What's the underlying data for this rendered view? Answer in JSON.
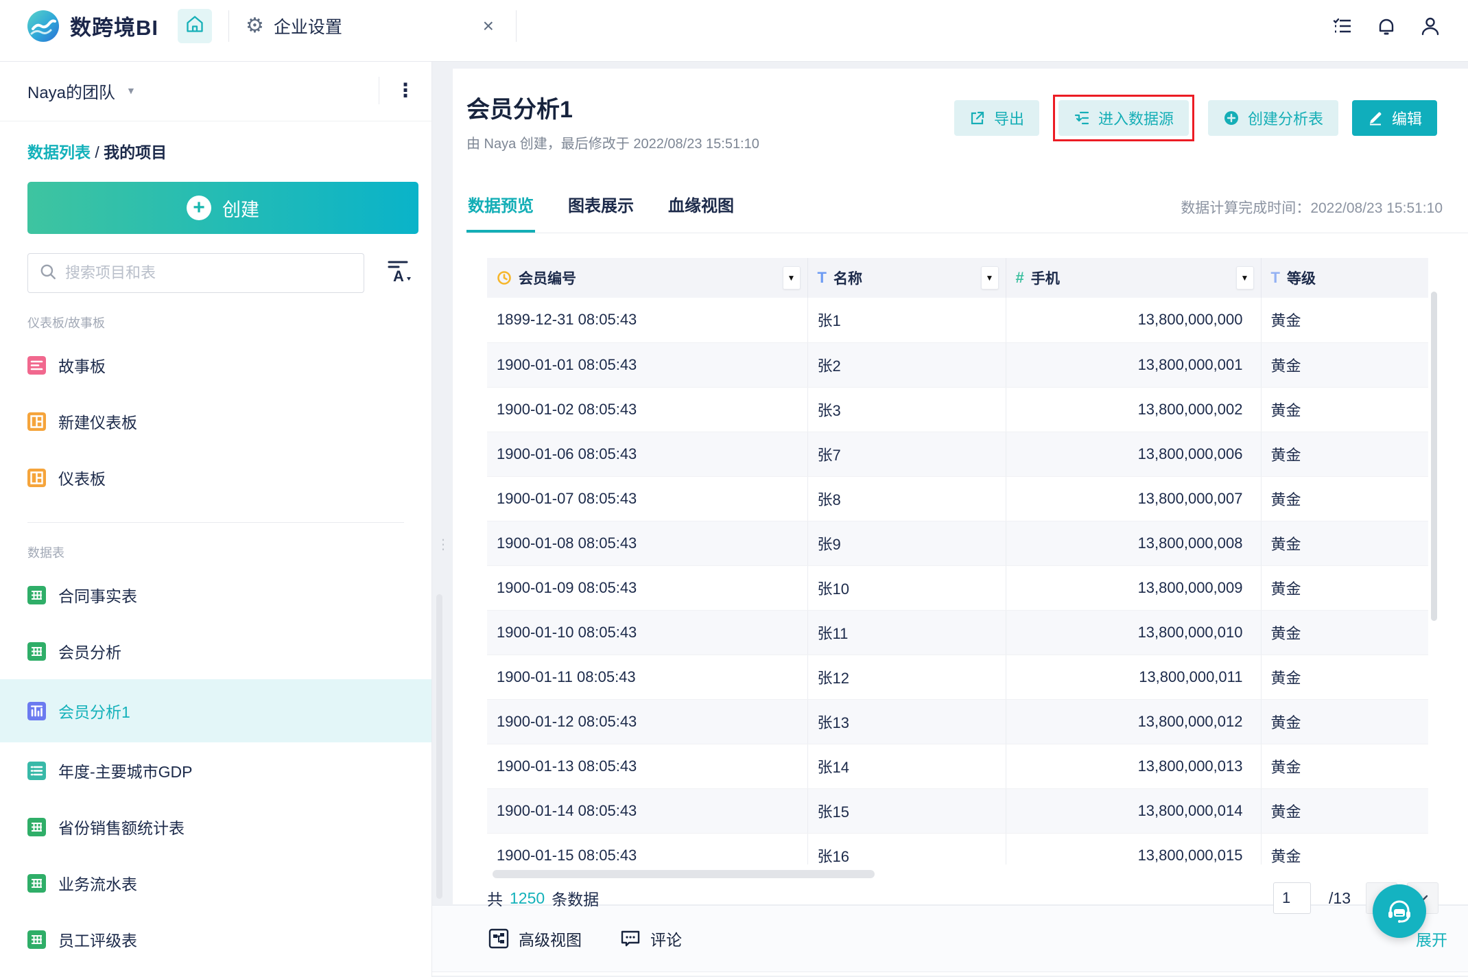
{
  "colors": {
    "accent_teal": "#14b1ba",
    "light_teal_bg": "#dff1f3",
    "highlight_red": "#ec1c24",
    "clock_gold": "#f6b62c",
    "text_blue_icon": "#6d9bf3",
    "number_teal_icon": "#3cbf9f",
    "green_table_icon": "#2fae68",
    "orange_dashboard_icon": "#f5a43b",
    "pink_story_icon": "#f1688e",
    "indigo_active_icon": "#6b7af0"
  },
  "topbar": {
    "brand": "数跨境BI",
    "tab": {
      "label": "企业设置"
    }
  },
  "sidebar": {
    "team": "Naya的团队",
    "breadcrumb": {
      "link": "数据列表",
      "sep": " / ",
      "current": "我的项目"
    },
    "create_label": "创建",
    "search_placeholder": "搜索项目和表",
    "section_boards": "仪表板/故事板",
    "boards": [
      {
        "label": "故事板"
      },
      {
        "label": "新建仪表板"
      },
      {
        "label": "仪表板"
      }
    ],
    "section_tables": "数据表",
    "tables": [
      {
        "label": "合同事实表"
      },
      {
        "label": "会员分析"
      },
      {
        "label": "会员分析1",
        "active": true
      },
      {
        "label": "年度-主要城市GDP"
      },
      {
        "label": "省份销售额统计表"
      },
      {
        "label": "业务流水表"
      },
      {
        "label": "员工评级表"
      }
    ]
  },
  "main": {
    "title": "会员分析1",
    "meta": "由 Naya 创建，最后修改于 2022/08/23 15:51:10",
    "actions": {
      "export": "导出",
      "enter_source": "进入数据源",
      "create_analysis": "创建分析表",
      "edit": "编辑"
    },
    "tabs": [
      {
        "label": "数据预览",
        "active": true
      },
      {
        "label": "图表展示"
      },
      {
        "label": "血缘视图"
      }
    ],
    "compute_time_label": "数据计算完成时间：",
    "compute_time": "2022/08/23 15:51:10",
    "table": {
      "columns": [
        {
          "label": "会员编号",
          "icon": "clock"
        },
        {
          "label": "名称",
          "icon": "text"
        },
        {
          "label": "手机",
          "icon": "number"
        },
        {
          "label": "等级",
          "icon": "text"
        }
      ],
      "rows": [
        [
          "1899-12-31 08:05:43",
          "张1",
          "13,800,000,000",
          "黄金"
        ],
        [
          "1900-01-01 08:05:43",
          "张2",
          "13,800,000,001",
          "黄金"
        ],
        [
          "1900-01-02 08:05:43",
          "张3",
          "13,800,000,002",
          "黄金"
        ],
        [
          "1900-01-06 08:05:43",
          "张7",
          "13,800,000,006",
          "黄金"
        ],
        [
          "1900-01-07 08:05:43",
          "张8",
          "13,800,000,007",
          "黄金"
        ],
        [
          "1900-01-08 08:05:43",
          "张9",
          "13,800,000,008",
          "黄金"
        ],
        [
          "1900-01-09 08:05:43",
          "张10",
          "13,800,000,009",
          "黄金"
        ],
        [
          "1900-01-10 08:05:43",
          "张11",
          "13,800,000,010",
          "黄金"
        ],
        [
          "1900-01-11 08:05:43",
          "张12",
          "13,800,000,011",
          "黄金"
        ],
        [
          "1900-01-12 08:05:43",
          "张13",
          "13,800,000,012",
          "黄金"
        ],
        [
          "1900-01-13 08:05:43",
          "张14",
          "13,800,000,013",
          "黄金"
        ],
        [
          "1900-01-14 08:05:43",
          "张15",
          "13,800,000,014",
          "黄金"
        ],
        [
          "1900-01-15 08:05:43",
          "张16",
          "13,800,000,015",
          "黄金"
        ]
      ]
    },
    "footer": {
      "total_prefix": "共",
      "total": "1250",
      "total_suffix": "条数据",
      "page": "1",
      "page_total": "/13"
    },
    "bottom": {
      "advanced": "高级视图",
      "comment": "评论",
      "expand": "展开"
    }
  }
}
